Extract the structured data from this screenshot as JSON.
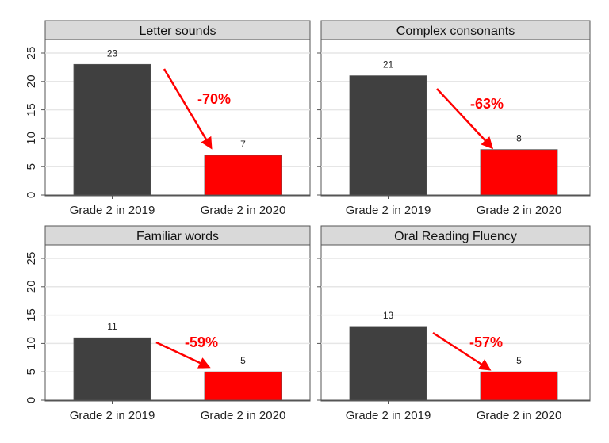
{
  "chart_data": [
    {
      "type": "bar",
      "title": "Letter sounds",
      "categories": [
        "Grade 2 in 2019",
        "Grade 2 in 2020"
      ],
      "values": [
        23,
        7
      ],
      "data_labels": [
        "23",
        "7"
      ],
      "annotation": "-70%",
      "ylim": [
        0,
        28
      ],
      "yticks": [
        "0",
        "5",
        "10",
        "15",
        "20",
        "25"
      ],
      "grid": true
    },
    {
      "type": "bar",
      "title": "Complex consonants",
      "categories": [
        "Grade 2 in 2019",
        "Grade 2 in 2020"
      ],
      "values": [
        21,
        8
      ],
      "data_labels": [
        "21",
        "8"
      ],
      "annotation": "-63%",
      "ylim": [
        0,
        28
      ],
      "yticks": [],
      "grid": true
    },
    {
      "type": "bar",
      "title": "Familiar words",
      "categories": [
        "Grade 2 in 2019",
        "Grade 2 in 2020"
      ],
      "values": [
        11,
        5
      ],
      "data_labels": [
        "11",
        "5"
      ],
      "annotation": "-59%",
      "ylim": [
        0,
        28
      ],
      "yticks": [
        "0",
        "5",
        "10",
        "15",
        "20",
        "25"
      ],
      "grid": true
    },
    {
      "type": "bar",
      "title": "Oral Reading Fluency",
      "categories": [
        "Grade 2 in 2019",
        "Grade 2 in 2020"
      ],
      "values": [
        13,
        5
      ],
      "data_labels": [
        "13",
        "5"
      ],
      "annotation": "-57%",
      "ylim": [
        0,
        28
      ],
      "yticks": [],
      "grid": true
    }
  ],
  "colors": {
    "bar_2019": "#404040",
    "bar_2020": "#ff0000",
    "annotation": "#ff0000",
    "title_bar": "#d9d9d9"
  }
}
